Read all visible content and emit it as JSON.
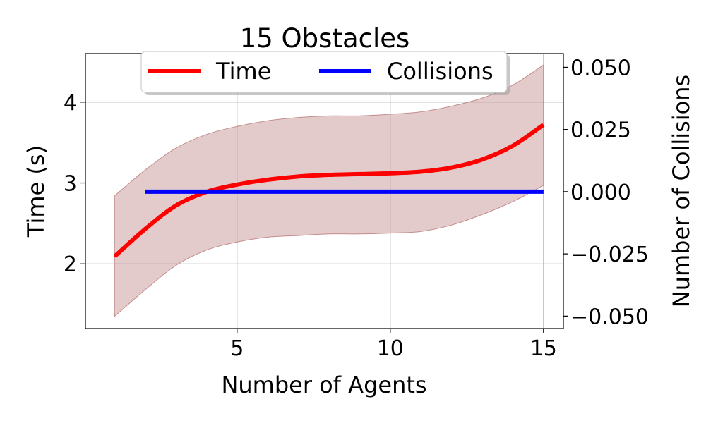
{
  "chart_data": {
    "type": "line",
    "title": "15 Obstacles",
    "xlabel": "Number of Agents",
    "ylabel": "Time (s)",
    "y2label": "Number of Collisions",
    "xlim": [
      0.05,
      15.65
    ],
    "ylim": [
      1.2,
      4.6
    ],
    "y2lim": [
      -0.055,
      0.0555
    ],
    "xticks": [
      "5",
      "10",
      "15"
    ],
    "xtick_values": [
      5,
      10,
      15
    ],
    "yticks": [
      "2",
      "3",
      "4"
    ],
    "ytick_values": [
      2,
      3,
      4
    ],
    "y2ticks": [
      "0.050",
      "0.025",
      "0.000",
      "−0.025",
      "−0.050"
    ],
    "y2tick_values": [
      0.05,
      0.025,
      0.0,
      -0.025,
      -0.05
    ],
    "grid": true,
    "legend_placement": "top-center",
    "series": [
      {
        "name": "Time",
        "axis": "left",
        "color": "#ff0000",
        "x": [
          1,
          2,
          3,
          4,
          5,
          6,
          7,
          8,
          9,
          10,
          11,
          12,
          13,
          14,
          15
        ],
        "values": [
          2.09,
          2.43,
          2.72,
          2.89,
          2.98,
          3.04,
          3.08,
          3.1,
          3.11,
          3.12,
          3.14,
          3.19,
          3.29,
          3.46,
          3.72
        ],
        "band_lower": [
          1.35,
          1.68,
          1.98,
          2.17,
          2.27,
          2.33,
          2.35,
          2.37,
          2.37,
          2.38,
          2.4,
          2.48,
          2.61,
          2.77,
          2.97
        ],
        "band_upper": [
          2.84,
          3.16,
          3.43,
          3.6,
          3.7,
          3.77,
          3.81,
          3.83,
          3.83,
          3.85,
          3.88,
          3.95,
          4.05,
          4.21,
          4.46
        ]
      },
      {
        "name": "Collisions",
        "axis": "right",
        "color": "#0000ff",
        "x": [
          2,
          15
        ],
        "values": [
          0.0,
          0.0
        ]
      }
    ],
    "band_color": "#c48c8c"
  }
}
